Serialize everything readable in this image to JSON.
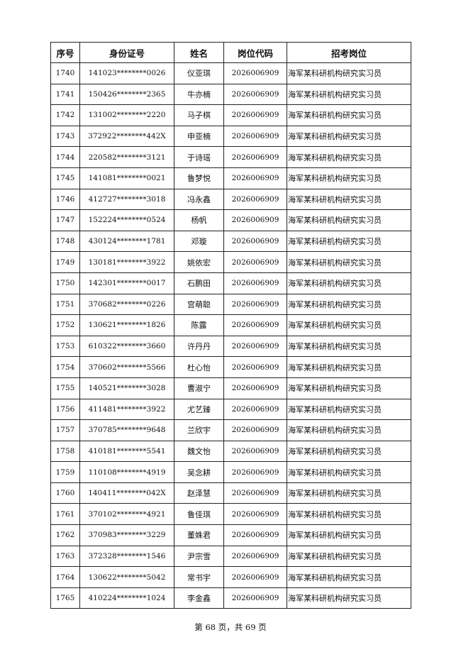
{
  "table": {
    "headers": [
      "序号",
      "身份证号",
      "姓名",
      "岗位代码",
      "招考岗位"
    ],
    "rows": [
      [
        "1740",
        "141023********0026",
        "仪亚琪",
        "2026006909",
        "海军某科研机构研究实习员"
      ],
      [
        "1741",
        "150426********2365",
        "牛亦楠",
        "2026006909",
        "海军某科研机构研究实习员"
      ],
      [
        "1742",
        "131002********2220",
        "马子棋",
        "2026006909",
        "海军某科研机构研究实习员"
      ],
      [
        "1743",
        "372922********442X",
        "申亚楠",
        "2026006909",
        "海军某科研机构研究实习员"
      ],
      [
        "1744",
        "220582********3121",
        "于诗瑶",
        "2026006909",
        "海军某科研机构研究实习员"
      ],
      [
        "1745",
        "141081********0021",
        "鲁梦悦",
        "2026006909",
        "海军某科研机构研究实习员"
      ],
      [
        "1746",
        "412727********3018",
        "冯永鑫",
        "2026006909",
        "海军某科研机构研究实习员"
      ],
      [
        "1747",
        "152224********0524",
        "杨帆",
        "2026006909",
        "海军某科研机构研究实习员"
      ],
      [
        "1748",
        "430124********1781",
        "邓璇",
        "2026006909",
        "海军某科研机构研究实习员"
      ],
      [
        "1749",
        "130181********3922",
        "姚依宏",
        "2026006909",
        "海军某科研机构研究实习员"
      ],
      [
        "1750",
        "142301********0017",
        "石鹏田",
        "2026006909",
        "海军某科研机构研究实习员"
      ],
      [
        "1751",
        "370682********0226",
        "宫萌聪",
        "2026006909",
        "海军某科研机构研究实习员"
      ],
      [
        "1752",
        "130621********1826",
        "陈露",
        "2026006909",
        "海军某科研机构研究实习员"
      ],
      [
        "1753",
        "610322********3660",
        "许丹丹",
        "2026006909",
        "海军某科研机构研究实习员"
      ],
      [
        "1754",
        "370602********5566",
        "杜心怡",
        "2026006909",
        "海军某科研机构研究实习员"
      ],
      [
        "1755",
        "140521********3028",
        "曹淑宁",
        "2026006909",
        "海军某科研机构研究实习员"
      ],
      [
        "1756",
        "411481********3922",
        "尤艺臻",
        "2026006909",
        "海军某科研机构研究实习员"
      ],
      [
        "1757",
        "370785********9648",
        "兰欣宇",
        "2026006909",
        "海军某科研机构研究实习员"
      ],
      [
        "1758",
        "410181********5541",
        "魏文怡",
        "2026006909",
        "海军某科研机构研究实习员"
      ],
      [
        "1759",
        "110108********4919",
        "吴念耕",
        "2026006909",
        "海军某科研机构研究实习员"
      ],
      [
        "1760",
        "140411********042X",
        "赵泽慧",
        "2026006909",
        "海军某科研机构研究实习员"
      ],
      [
        "1761",
        "370102********4921",
        "鲁佳琪",
        "2026006909",
        "海军某科研机构研究实习员"
      ],
      [
        "1762",
        "370983********3229",
        "董姝君",
        "2026006909",
        "海军某科研机构研究实习员"
      ],
      [
        "1763",
        "372328********1546",
        "尹宗雪",
        "2026006909",
        "海军某科研机构研究实习员"
      ],
      [
        "1764",
        "130622********5042",
        "常书宇",
        "2026006909",
        "海军某科研机构研究实习员"
      ],
      [
        "1765",
        "410224********1024",
        "李金鑫",
        "2026006909",
        "海军某科研机构研究实习员"
      ]
    ]
  },
  "footer": {
    "page_text": "第 68 页，共 69 页"
  }
}
